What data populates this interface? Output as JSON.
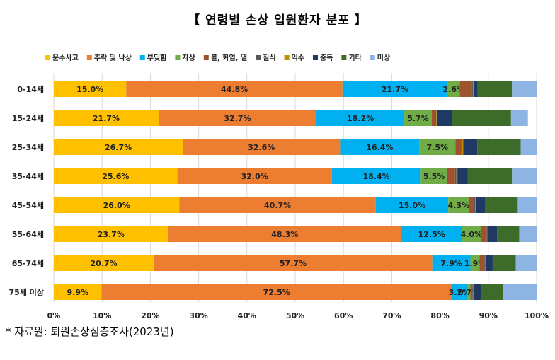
{
  "page": {
    "source": "* 자료원: 퇴원손상심층조사(2023년)"
  },
  "chart_data": {
    "type": "bar",
    "orientation": "horizontal",
    "stacked": true,
    "normalized": true,
    "title": "【 연령별 손상 입원환자 분포 】",
    "xlabel": "",
    "ylabel": "",
    "xlim": [
      0,
      100
    ],
    "x_ticks": [
      "0%",
      "10%",
      "20%",
      "30%",
      "40%",
      "50%",
      "60%",
      "70%",
      "80%",
      "90%",
      "100%"
    ],
    "legend_position": "top",
    "grid": true,
    "categories": [
      "0-14세",
      "15-24세",
      "25-34세",
      "35-44세",
      "45-54세",
      "55-64세",
      "65-74세",
      "75세 이상"
    ],
    "series": [
      {
        "name": "운수사고",
        "color": "#FFC000",
        "values": [
          15.0,
          21.7,
          26.7,
          25.6,
          26.0,
          23.7,
          20.7,
          9.9
        ],
        "labels": [
          "15.0%",
          "21.7%",
          "26.7%",
          "25.6%",
          "26.0%",
          "23.7%",
          "20.7%",
          "9.9%"
        ]
      },
      {
        "name": "추락 및 낙상",
        "color": "#ED7D31",
        "values": [
          44.8,
          32.7,
          32.6,
          32.0,
          40.7,
          48.3,
          57.7,
          72.5
        ],
        "labels": [
          "44.8%",
          "32.7%",
          "32.6%",
          "32.0%",
          "40.7%",
          "48.3%",
          "57.7%",
          "72.5%"
        ]
      },
      {
        "name": "부딪힘",
        "color": "#00B0F0",
        "values": [
          21.7,
          18.2,
          16.4,
          18.4,
          15.0,
          12.5,
          7.9,
          3.2
        ],
        "labels": [
          "21.7%",
          "18.2%",
          "16.4%",
          "18.4%",
          "15.0%",
          "12.5%",
          "7.9%",
          "3.2%"
        ]
      },
      {
        "name": "자상",
        "color": "#70AD47",
        "values": [
          2.6,
          5.7,
          7.5,
          5.5,
          4.3,
          4.0,
          1.9,
          0.7
        ],
        "labels": [
          "2.6%",
          "5.7%",
          "7.5%",
          "5.5%",
          "4.3%",
          "4.0%",
          "1.9%",
          "0.7%"
        ]
      },
      {
        "name": "불, 화염, 열",
        "color": "#A0522D",
        "values": [
          2.5,
          0.7,
          1.2,
          1.6,
          1.0,
          1.2,
          1.0,
          0.4
        ],
        "labels": []
      },
      {
        "name": "질식",
        "color": "#595959",
        "values": [
          0.2,
          0.2,
          0.2,
          0.3,
          0.3,
          0.2,
          0.2,
          0.2
        ],
        "labels": []
      },
      {
        "name": "익수",
        "color": "#BF8F00",
        "values": [
          0.3,
          0.1,
          0.2,
          0.2,
          0.1,
          0.1,
          0.1,
          0.1
        ],
        "labels": []
      },
      {
        "name": "중독",
        "color": "#1F3864",
        "values": [
          0.7,
          3.2,
          2.9,
          2.1,
          2.0,
          1.8,
          1.4,
          1.5
        ],
        "labels": []
      },
      {
        "name": "기타",
        "color": "#3D6B2A",
        "values": [
          7.1,
          12.2,
          9.0,
          9.2,
          6.7,
          4.6,
          4.8,
          4.5
        ],
        "labels": []
      },
      {
        "name": "미상",
        "color": "#8EB4E3",
        "values": [
          5.1,
          3.5,
          3.3,
          5.1,
          3.9,
          3.6,
          4.3,
          7.0
        ],
        "labels": []
      }
    ]
  }
}
